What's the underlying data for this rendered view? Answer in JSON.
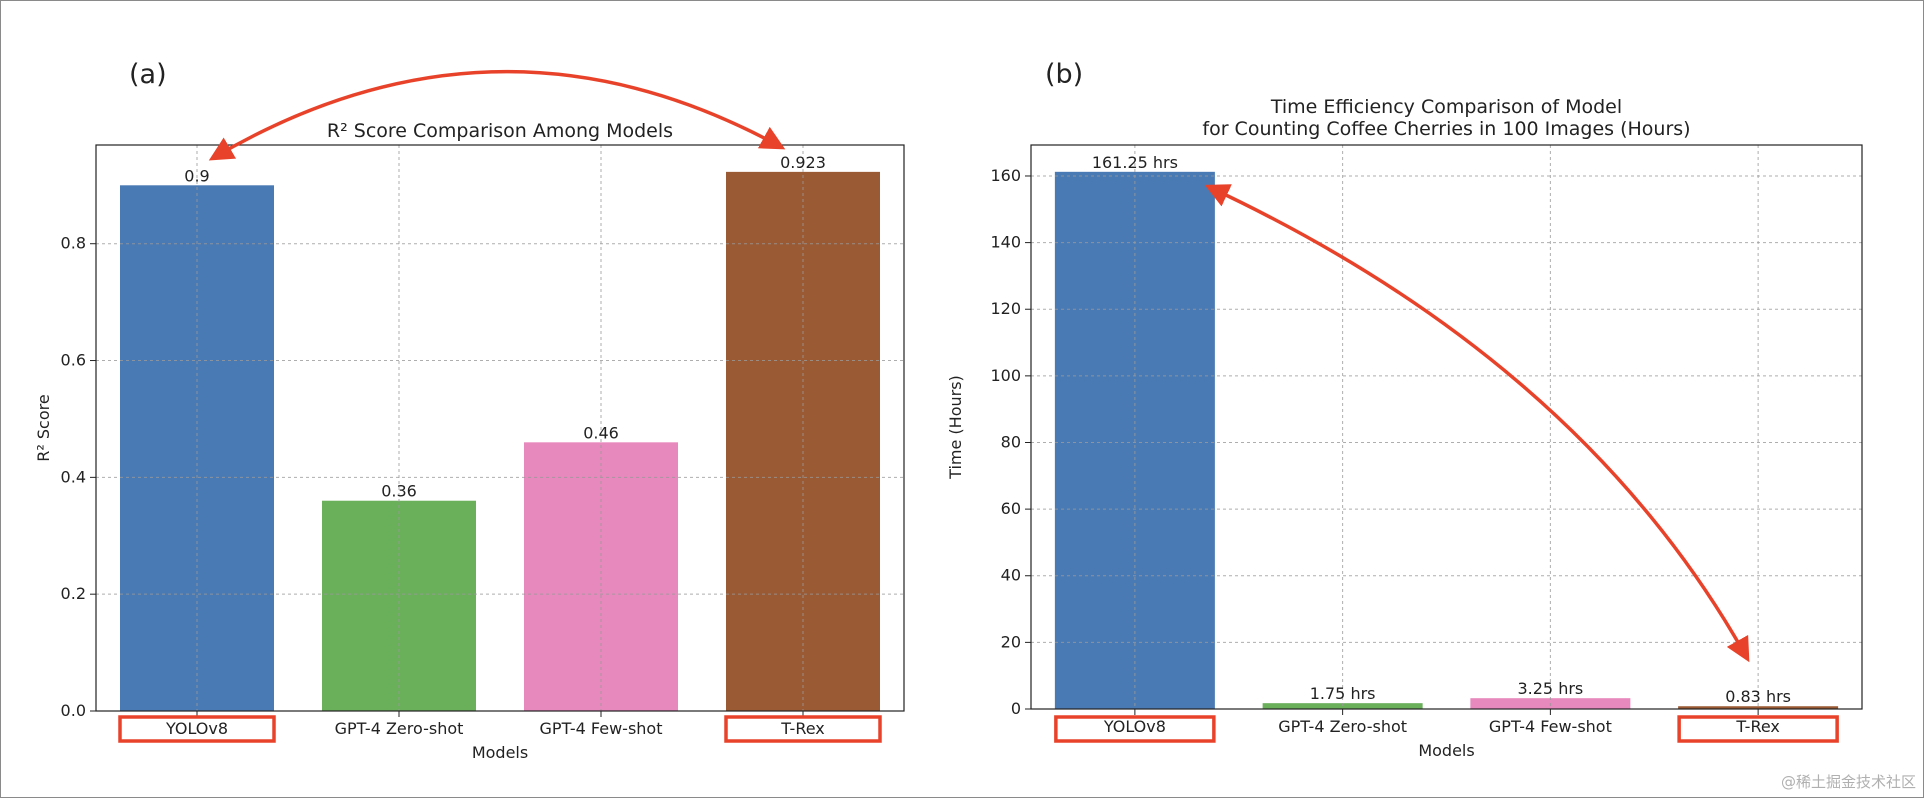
{
  "watermark": "@稀土掘金技术社区",
  "chart_data": [
    {
      "panel_label": "(a)",
      "type": "bar",
      "title": [
        "R² Score Comparison Among Models"
      ],
      "xlabel": "Models",
      "ylabel": "R² Score",
      "categories": [
        "YOLOv8",
        "GPT-4 Zero-shot",
        "GPT-4 Few-shot",
        "T-Rex"
      ],
      "values": [
        0.9,
        0.36,
        0.46,
        0.923
      ],
      "data_labels": [
        "0.9",
        "0.36",
        "0.46",
        "0.923"
      ],
      "colors": [
        "#4a7ab3",
        "#6aaf5a",
        "#e889bd",
        "#9a5a33"
      ],
      "highlighted_categories": [
        "YOLOv8",
        "T-Rex"
      ],
      "ylim": [
        0,
        0.969
      ],
      "yticks": [
        0.0,
        0.2,
        0.4,
        0.6,
        0.8
      ],
      "ytick_labels": [
        "0.0",
        "0.2",
        "0.4",
        "0.6",
        "0.8"
      ],
      "grid": true,
      "annotation_arrow": {
        "from": "YOLOv8",
        "to": "T-Rex",
        "color": "#e8432a",
        "direction": "both"
      }
    },
    {
      "panel_label": "(b)",
      "type": "bar",
      "title": [
        "Time Efficiency Comparison of Model",
        "for Counting Coffee Cherries in 100 Images (Hours)"
      ],
      "xlabel": "Models",
      "ylabel": "Time (Hours)",
      "categories": [
        "YOLOv8",
        "GPT-4 Zero-shot",
        "GPT-4 Few-shot",
        "T-Rex"
      ],
      "values": [
        161.25,
        1.75,
        3.25,
        0.83
      ],
      "data_labels": [
        "161.25 hrs",
        "1.75 hrs",
        "3.25 hrs",
        "0.83 hrs"
      ],
      "colors": [
        "#4a7ab3",
        "#6aaf5a",
        "#e889bd",
        "#9a5a33"
      ],
      "highlighted_categories": [
        "YOLOv8",
        "T-Rex"
      ],
      "ylim": [
        0,
        169.3
      ],
      "yticks": [
        0,
        20,
        40,
        60,
        80,
        100,
        120,
        140,
        160
      ],
      "ytick_labels": [
        "0",
        "20",
        "40",
        "60",
        "80",
        "100",
        "120",
        "140",
        "160"
      ],
      "grid": true,
      "annotation_arrow": {
        "from": "YOLOv8",
        "to": "T-Rex",
        "color": "#e8432a",
        "direction": "both"
      }
    }
  ]
}
